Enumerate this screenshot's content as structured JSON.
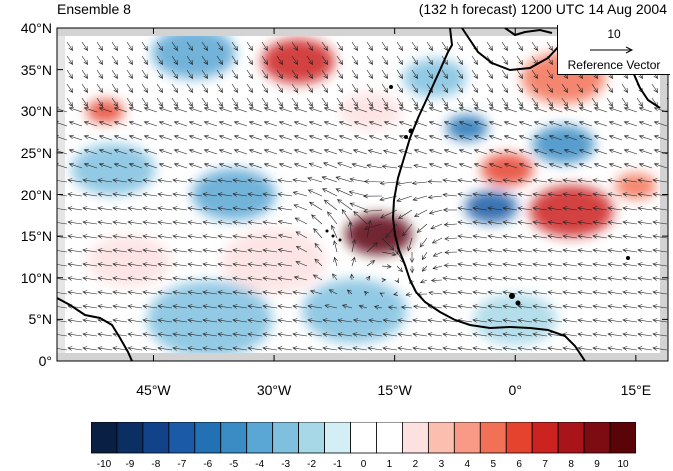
{
  "header": {
    "left_title": "Ensemble 8",
    "right_title": "(132 h forecast) 1200 UTC 14 Aug 2004"
  },
  "axes": {
    "lat_labels": [
      "40°N",
      "35°N",
      "30°N",
      "25°N",
      "20°N",
      "15°N",
      "10°N",
      "5°N",
      "0°"
    ],
    "lat_values": [
      40,
      35,
      30,
      25,
      20,
      15,
      10,
      5,
      0
    ],
    "lon_labels": [
      "45°W",
      "30°W",
      "15°W",
      "0°",
      "15°E"
    ],
    "lon_values": [
      -45,
      -30,
      -15,
      0,
      15
    ],
    "lon_range": [
      -57,
      19
    ],
    "lat_range": [
      0,
      40
    ]
  },
  "reference_vector": {
    "magnitude": "10",
    "label": "Reference Vector"
  },
  "colorbar": {
    "labels": [
      "-10",
      "-9",
      "-8",
      "-7",
      "-6",
      "-5",
      "-4",
      "-3",
      "-2",
      "-1",
      "0",
      "1",
      "2",
      "3",
      "4",
      "5",
      "6",
      "7",
      "8",
      "9",
      "10"
    ],
    "colors": [
      "#0a1f44",
      "#0b2e63",
      "#12438a",
      "#1a5aa6",
      "#2271b5",
      "#3a8cc4",
      "#5aa6d4",
      "#7fc0df",
      "#a7d8e8",
      "#d3eef5",
      "#ffffff",
      "#ffffff",
      "#fde0e0",
      "#fbbfb0",
      "#f89a85",
      "#f27156",
      "#e5432e",
      "#cc2220",
      "#a8141a",
      "#7d0b12",
      "#5a0408"
    ]
  },
  "anomalies": [
    {
      "lon": -17,
      "lat": 15.2,
      "value": 10,
      "r": 3.2
    },
    {
      "lon": -27,
      "lat": 36,
      "value": 7,
      "r": 3.5
    },
    {
      "lon": -51,
      "lat": 30,
      "value": 6,
      "r": 1.8
    },
    {
      "lon": 7,
      "lat": 18,
      "value": 7,
      "r": 4
    },
    {
      "lon": -1,
      "lat": 23,
      "value": 6,
      "r": 2.5
    },
    {
      "lon": 6,
      "lat": 34,
      "value": 5,
      "r": 4
    },
    {
      "lon": 15,
      "lat": 21,
      "value": 5,
      "r": 2
    },
    {
      "lon": -3,
      "lat": 18.5,
      "value": -7,
      "r": 2.5
    },
    {
      "lon": -6,
      "lat": 28,
      "value": -6,
      "r": 2
    },
    {
      "lon": 6,
      "lat": 26,
      "value": -5,
      "r": 3
    },
    {
      "lon": -35,
      "lat": 20,
      "value": -4,
      "r": 4
    },
    {
      "lon": -40,
      "lat": 37,
      "value": -4,
      "r": 4
    },
    {
      "lon": -20,
      "lat": 6,
      "value": -3,
      "r": 5
    },
    {
      "lon": -38,
      "lat": 5,
      "value": -3,
      "r": 6
    },
    {
      "lon": -50,
      "lat": 23,
      "value": -3,
      "r": 4
    },
    {
      "lon": -10,
      "lat": 34,
      "value": -3,
      "r": 3
    },
    {
      "lon": -30,
      "lat": 12,
      "value": 2,
      "r": 5
    },
    {
      "lon": -48,
      "lat": 12,
      "value": 2,
      "r": 4
    },
    {
      "lon": 0,
      "lat": 5,
      "value": -2,
      "r": 4
    },
    {
      "lon": -18,
      "lat": 30,
      "value": 2,
      "r": 3
    }
  ],
  "colors": {
    "land_mask": "#d3d3d3",
    "coast": "#000000",
    "vector": "#222222"
  }
}
